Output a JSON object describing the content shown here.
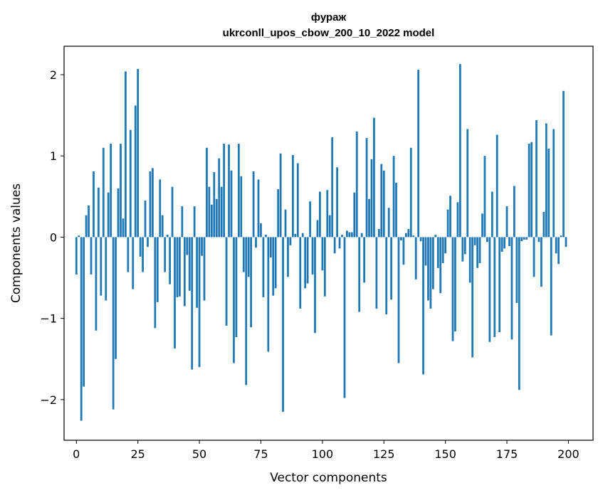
{
  "chart_data": {
    "type": "bar",
    "title": "фураж",
    "subtitle": "ukrconll_upos_cbow_200_10_2022 model",
    "xlabel": "Vector components",
    "ylabel": "Components values",
    "xlim": [
      -5,
      210
    ],
    "ylim": [
      -2.5,
      2.35
    ],
    "xticks": [
      0,
      25,
      50,
      75,
      100,
      125,
      150,
      175,
      200
    ],
    "yticks": [
      -2,
      -1,
      0,
      1,
      2
    ],
    "xtick_labels": [
      "0",
      "25",
      "50",
      "75",
      "100",
      "125",
      "150",
      "175",
      "200"
    ],
    "ytick_labels": [
      "−2",
      "−1",
      "0",
      "1",
      "2"
    ],
    "grid": false,
    "bar_color": "#1f77b4",
    "x": [
      0,
      1,
      2,
      3,
      4,
      5,
      6,
      7,
      8,
      9,
      10,
      11,
      12,
      13,
      14,
      15,
      16,
      17,
      18,
      19,
      20,
      21,
      22,
      23,
      24,
      25,
      26,
      27,
      28,
      29,
      30,
      31,
      32,
      33,
      34,
      35,
      36,
      37,
      38,
      39,
      40,
      41,
      42,
      43,
      44,
      45,
      46,
      47,
      48,
      49,
      50,
      51,
      52,
      53,
      54,
      55,
      56,
      57,
      58,
      59,
      60,
      61,
      62,
      63,
      64,
      65,
      66,
      67,
      68,
      69,
      70,
      71,
      72,
      73,
      74,
      75,
      76,
      77,
      78,
      79,
      80,
      81,
      82,
      83,
      84,
      85,
      86,
      87,
      88,
      89,
      90,
      91,
      92,
      93,
      94,
      95,
      96,
      97,
      98,
      99,
      100,
      101,
      102,
      103,
      104,
      105,
      106,
      107,
      108,
      109,
      110,
      111,
      112,
      113,
      114,
      115,
      116,
      117,
      118,
      119,
      120,
      121,
      122,
      123,
      124,
      125,
      126,
      127,
      128,
      129,
      130,
      131,
      132,
      133,
      134,
      135,
      136,
      137,
      138,
      139,
      140,
      141,
      142,
      143,
      144,
      145,
      146,
      147,
      148,
      149,
      150,
      151,
      152,
      153,
      154,
      155,
      156,
      157,
      158,
      159,
      160,
      161,
      162,
      163,
      164,
      165,
      166,
      167,
      168,
      169,
      170,
      171,
      172,
      173,
      174,
      175,
      176,
      177,
      178,
      179,
      180,
      181,
      182,
      183,
      184,
      185,
      186,
      187,
      188,
      189,
      190,
      191,
      192,
      193,
      194,
      195,
      196,
      197,
      198,
      199
    ],
    "values": [
      -0.46,
      0.02,
      -2.26,
      -1.84,
      0.27,
      0.39,
      -0.46,
      0.81,
      -1.15,
      0.61,
      -0.72,
      1.1,
      -0.78,
      0.55,
      1.15,
      -2.12,
      -1.5,
      0.6,
      1.15,
      0.23,
      2.04,
      -0.43,
      1.32,
      -0.64,
      1.62,
      2.07,
      -0.24,
      -0.43,
      0.45,
      -0.12,
      0.81,
      0.85,
      -1.12,
      -0.8,
      0.71,
      0.27,
      -0.43,
      0.03,
      -0.58,
      0.62,
      -1.37,
      -0.74,
      -0.73,
      0.38,
      -0.85,
      -0.22,
      -0.66,
      -1.63,
      0.38,
      -0.87,
      -1.6,
      -0.23,
      -0.78,
      1.1,
      0.62,
      0.4,
      0.8,
      0.47,
      0.97,
      0.62,
      1.15,
      -1.09,
      1.14,
      0.82,
      -1.55,
      -1.23,
      1.15,
      0.75,
      -0.43,
      -1.82,
      -0.49,
      -1.11,
      0.81,
      -0.13,
      0.71,
      0.17,
      -0.74,
      0.03,
      -1.41,
      -0.25,
      -0.72,
      -0.63,
      0.59,
      1.03,
      -2.15,
      0.34,
      -0.49,
      -0.1,
      1.01,
      0.04,
      0.91,
      -0.88,
      0.05,
      -0.63,
      -0.57,
      0.44,
      -0.46,
      -1.18,
      0.21,
      0.56,
      -0.41,
      -0.73,
      0.58,
      0.27,
      1.23,
      -0.2,
      0.86,
      -0.14,
      0.03,
      -1.98,
      0.08,
      0.06,
      0.06,
      0.55,
      1.3,
      -0.92,
      0.05,
      -0.56,
      1.22,
      0.47,
      0.96,
      1.47,
      -0.88,
      0.1,
      0.9,
      0.82,
      -0.95,
      0.36,
      -0.77,
      1.0,
      0.67,
      -1.55,
      -0.04,
      -0.34,
      0.05,
      0.1,
      1.1,
      0.02,
      -0.52,
      2.06,
      -0.05,
      -1.69,
      -0.35,
      -0.78,
      -0.88,
      -0.64,
      0.03,
      -0.38,
      -0.69,
      -0.32,
      -0.2,
      0.34,
      0.51,
      -1.28,
      -1.16,
      0.43,
      2.13,
      -0.3,
      -0.21,
      1.33,
      -0.56,
      -1.48,
      -0.1,
      -0.38,
      -0.32,
      0.29,
      1.0,
      -0.06,
      -1.29,
      0.56,
      -1.23,
      1.26,
      -1.17,
      -0.18,
      -0.14,
      0.38,
      -0.11,
      -1.26,
      0.63,
      -0.81,
      -1.88,
      -0.05,
      -0.03,
      -0.03,
      1.15,
      1.17,
      -0.49,
      1.44,
      -0.06,
      -0.61,
      0.31,
      1.4,
      1.09,
      -1.21,
      1.33,
      -0.2,
      -0.33,
      0.02,
      1.8,
      -0.12
    ]
  }
}
